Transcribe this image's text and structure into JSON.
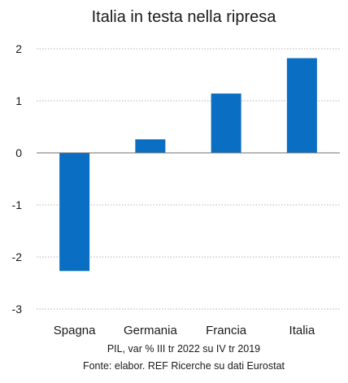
{
  "chart_data": {
    "type": "bar",
    "title": "Italia in testa nella ripresa",
    "categories": [
      "Spagna",
      "Germania",
      "Francia",
      "Italia"
    ],
    "values": [
      -2.27,
      0.26,
      1.14,
      1.82
    ],
    "yticks": [
      "-3",
      "-2",
      "-1",
      "0",
      "1",
      "2"
    ],
    "ylim": [
      -3,
      2
    ],
    "grid": "horizontal-dotted",
    "bar_color": "#0a6fc2",
    "note": "PIL, var % III tr 2022 su IV tr 2019",
    "source": "Fonte: elabor. REF Ricerche su dati Eurostat"
  }
}
